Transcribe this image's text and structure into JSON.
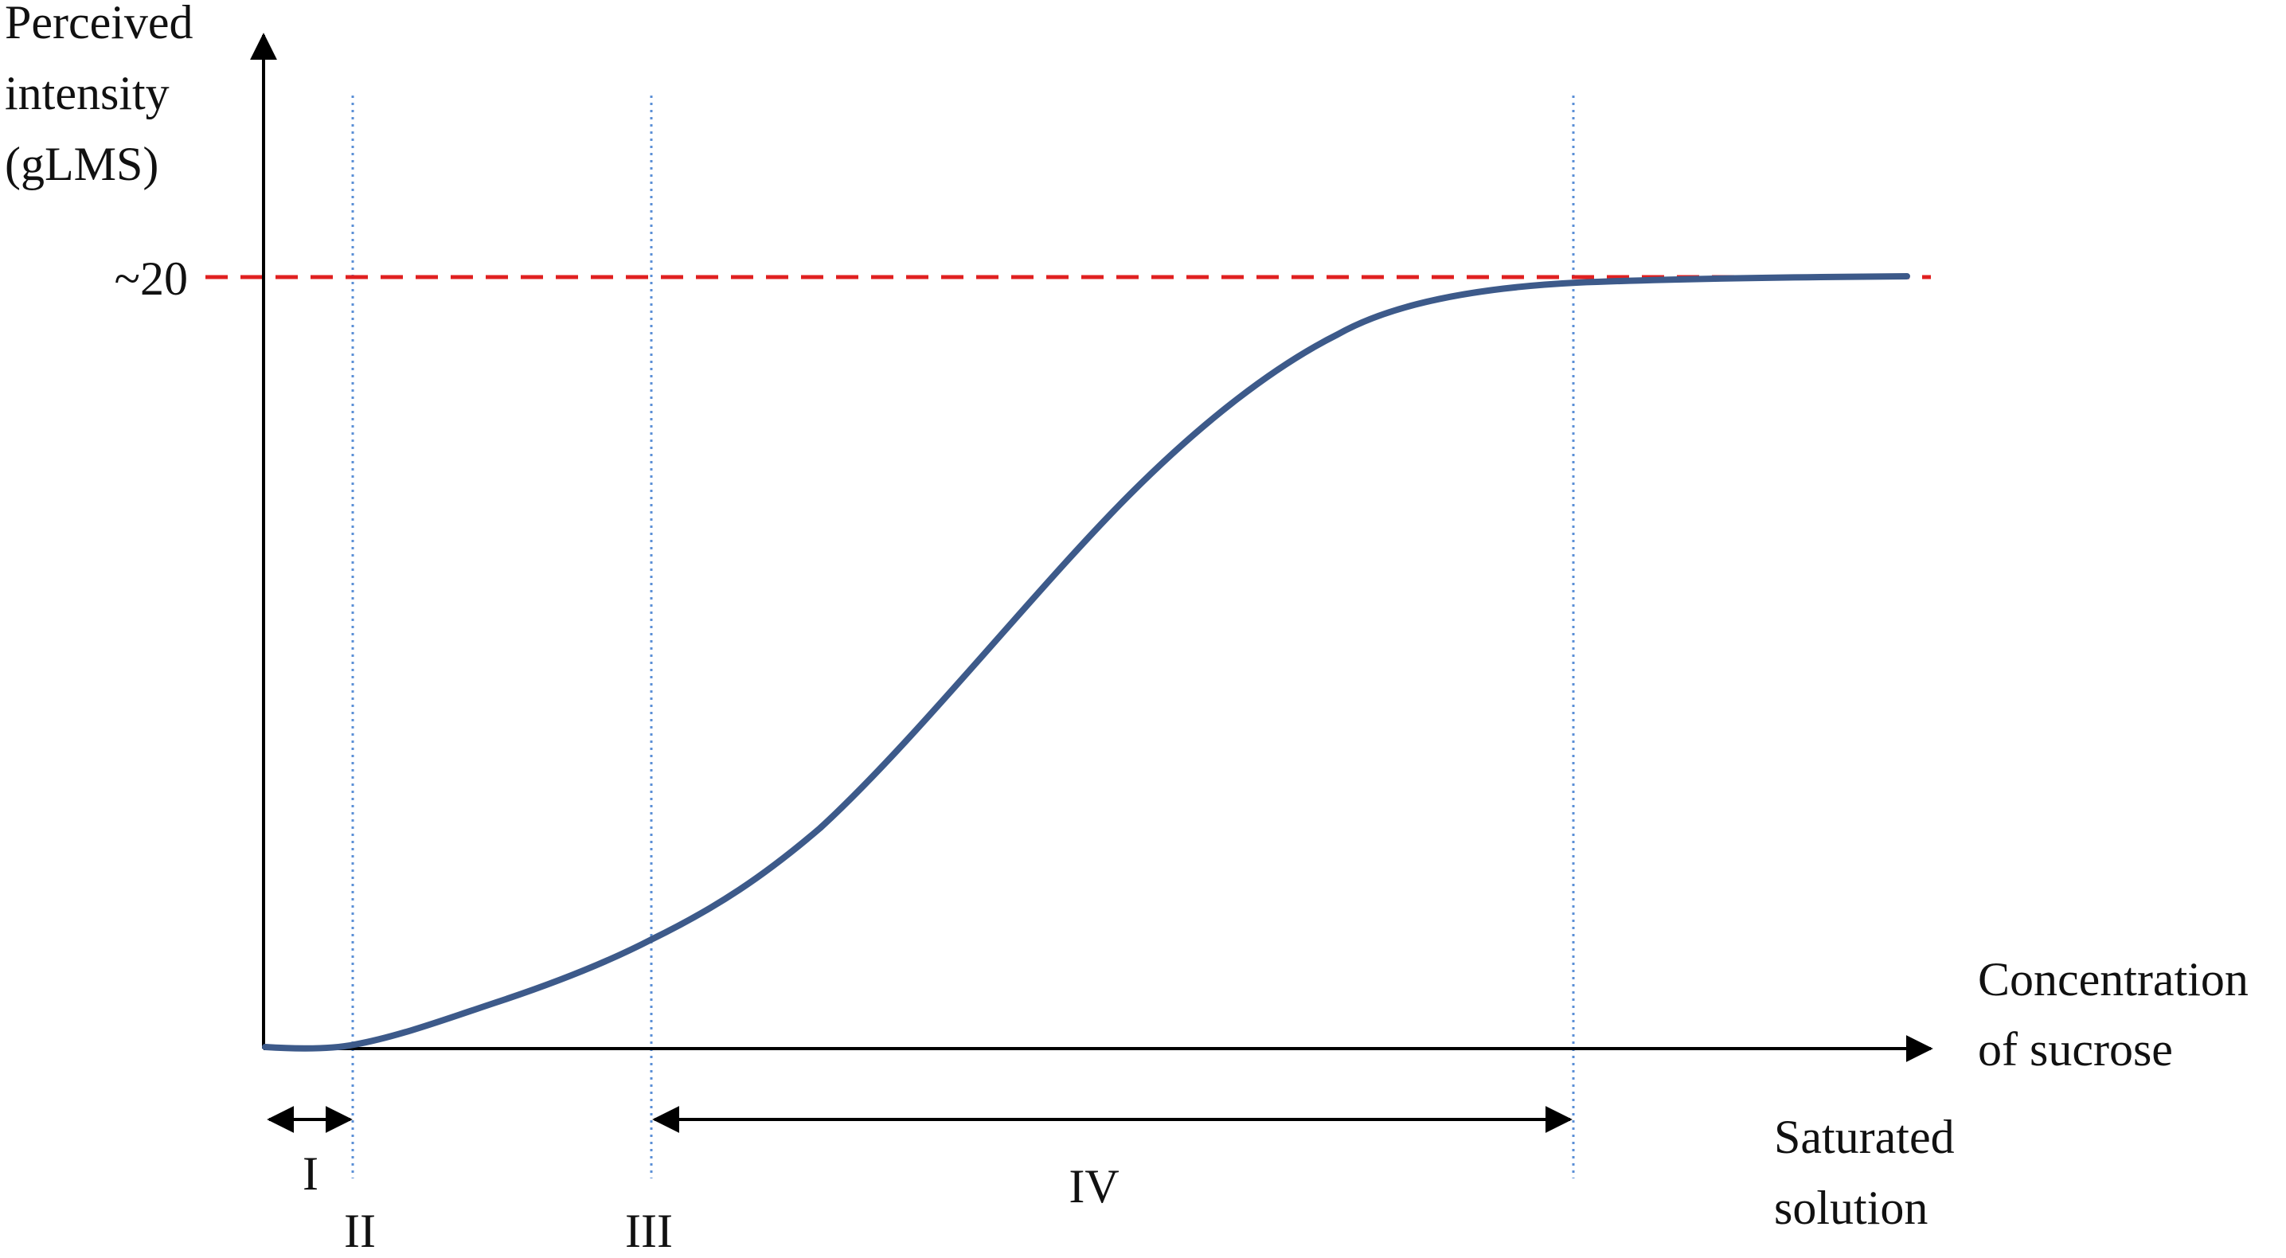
{
  "y_axis": {
    "label_lines": [
      "Perceived",
      "intensity",
      "(gLMS)"
    ],
    "max_marker": "~20"
  },
  "x_axis": {
    "label_lines": [
      "Concentration",
      "of sucrose"
    ]
  },
  "saturated_label_lines": [
    "Saturated",
    "solution"
  ],
  "regions": [
    "I",
    "II",
    "III",
    "IV"
  ],
  "colors": {
    "curve": "#3d5a8a",
    "reference_line": "#e02020",
    "boundary_lines": "#5b8fd6",
    "axes": "#000000",
    "text": "#111111"
  }
}
